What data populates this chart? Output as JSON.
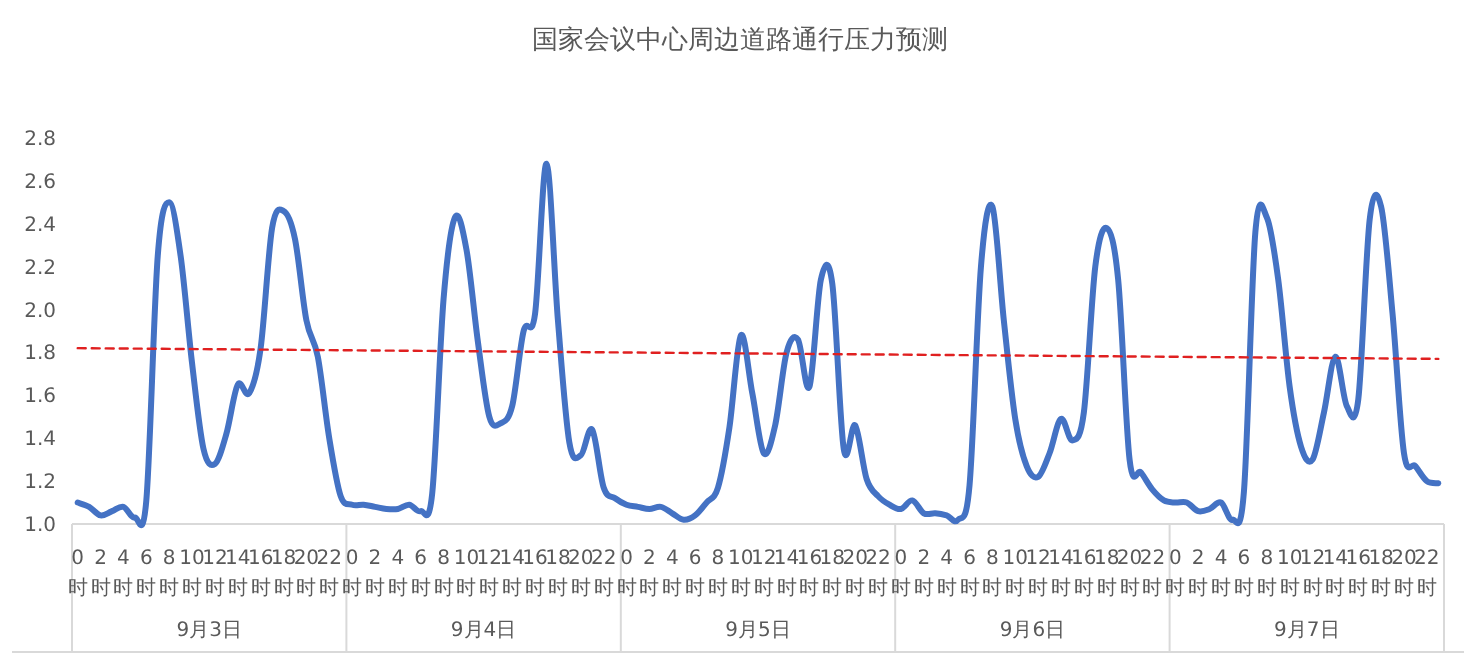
{
  "chart_data": {
    "type": "line",
    "title": "国家会议中心周边道路通行压力预测",
    "categories": [
      "0时",
      null,
      "2时",
      null,
      "4时",
      null,
      "6时",
      null,
      "8时",
      null,
      "10时",
      null,
      "12时",
      null,
      "14时",
      null,
      "16时",
      null,
      "18时",
      null,
      "20时",
      null,
      "22时",
      null,
      "0时",
      null,
      "2时",
      null,
      "4时",
      null,
      "6时",
      null,
      "8时",
      null,
      "10时",
      null,
      "12时",
      null,
      "14时",
      null,
      "16时",
      null,
      "18时",
      null,
      "20时",
      null,
      "22时",
      null,
      "0时",
      null,
      "2时",
      null,
      "4时",
      null,
      "6时",
      null,
      "8时",
      null,
      "10时",
      null,
      "12时",
      null,
      "14时",
      null,
      "16时",
      null,
      "18时",
      null,
      "20时",
      null,
      "22时",
      null,
      "0时",
      null,
      "2时",
      null,
      "4时",
      null,
      "6时",
      null,
      "8时",
      null,
      "10时",
      null,
      "12时",
      null,
      "14时",
      null,
      "16时",
      null,
      "18时",
      null,
      "20时",
      null,
      "22时",
      null,
      "0时",
      null,
      "2时",
      null,
      "4时",
      null,
      "6时",
      null,
      "8时",
      null,
      "10时",
      null,
      "12时",
      null,
      "14时",
      null,
      "16时",
      null,
      "18时",
      null,
      "20时",
      null,
      "22时",
      null
    ],
    "series": [
      {
        "color": "#4472c4",
        "values": [
          1.1,
          1.08,
          1.04,
          1.06,
          1.08,
          1.03,
          1.11,
          2.25,
          2.5,
          2.25,
          1.75,
          1.35,
          1.28,
          1.42,
          1.65,
          1.61,
          1.82,
          2.38,
          2.46,
          2.33,
          1.95,
          1.78,
          1.4,
          1.13,
          1.09,
          1.09,
          1.08,
          1.07,
          1.07,
          1.09,
          1.06,
          1.14,
          2.05,
          2.43,
          2.28,
          1.85,
          1.5,
          1.47,
          1.55,
          1.9,
          1.98,
          2.68,
          1.95,
          1.38,
          1.32,
          1.44,
          1.17,
          1.12,
          1.09,
          1.08,
          1.07,
          1.08,
          1.05,
          1.02,
          1.04,
          1.1,
          1.17,
          1.45,
          1.88,
          1.61,
          1.33,
          1.46,
          1.8,
          1.86,
          1.64,
          2.14,
          2.12,
          1.35,
          1.46,
          1.21,
          1.13,
          1.09,
          1.07,
          1.11,
          1.05,
          1.05,
          1.04,
          1.02,
          1.18,
          2.2,
          2.48,
          1.95,
          1.49,
          1.27,
          1.22,
          1.33,
          1.49,
          1.39,
          1.52,
          2.2,
          2.38,
          2.14,
          1.3,
          1.24,
          1.16,
          1.11,
          1.1,
          1.1,
          1.06,
          1.07,
          1.1,
          1.02,
          1.15,
          2.36,
          2.43,
          2.14,
          1.64,
          1.36,
          1.3,
          1.52,
          1.78,
          1.55,
          1.58,
          2.42,
          2.48,
          1.98,
          1.33,
          1.27,
          1.2,
          1.19
        ]
      },
      {
        "type": "line",
        "color": "#e02020",
        "line_style": "dashed",
        "values": [
          1.82,
          null,
          null,
          null,
          null,
          null,
          null,
          null,
          null,
          null,
          null,
          null,
          null,
          null,
          null,
          null,
          null,
          null,
          null,
          null,
          null,
          null,
          null,
          null,
          null,
          null,
          null,
          null,
          null,
          null,
          null,
          null,
          null,
          null,
          null,
          null,
          null,
          null,
          null,
          null,
          null,
          null,
          null,
          null,
          null,
          null,
          null,
          null,
          null,
          null,
          null,
          null,
          null,
          null,
          null,
          null,
          null,
          null,
          null,
          null,
          null,
          null,
          null,
          null,
          null,
          null,
          null,
          null,
          null,
          null,
          null,
          null,
          null,
          null,
          null,
          null,
          null,
          null,
          null,
          null,
          null,
          null,
          null,
          null,
          null,
          null,
          null,
          null,
          null,
          null,
          null,
          null,
          null,
          null,
          null,
          null,
          null,
          null,
          null,
          null,
          null,
          null,
          null,
          null,
          null,
          null,
          null,
          null,
          null,
          null,
          null,
          null,
          null,
          null,
          null,
          null,
          null,
          null,
          null,
          1.77
        ]
      }
    ],
    "ylim": [
      1.0,
      2.8
    ],
    "yticks": [
      {
        "value": 1.0,
        "label": "1.0"
      },
      {
        "value": 1.2,
        "label": "1.2"
      },
      {
        "value": 1.4,
        "label": "1.4"
      },
      {
        "value": 1.6,
        "label": "1.6"
      },
      {
        "value": 1.8,
        "label": "1.8"
      },
      {
        "value": 2.0,
        "label": "2.0"
      },
      {
        "value": 2.2,
        "label": "2.2"
      },
      {
        "value": 2.4,
        "label": "2.4"
      },
      {
        "value": 2.6,
        "label": "2.6"
      },
      {
        "value": 2.8,
        "label": "2.8"
      }
    ],
    "annotations": [
      "9月3日",
      "9月4日",
      "9月5日",
      "9月6日",
      "9月7日"
    ]
  }
}
